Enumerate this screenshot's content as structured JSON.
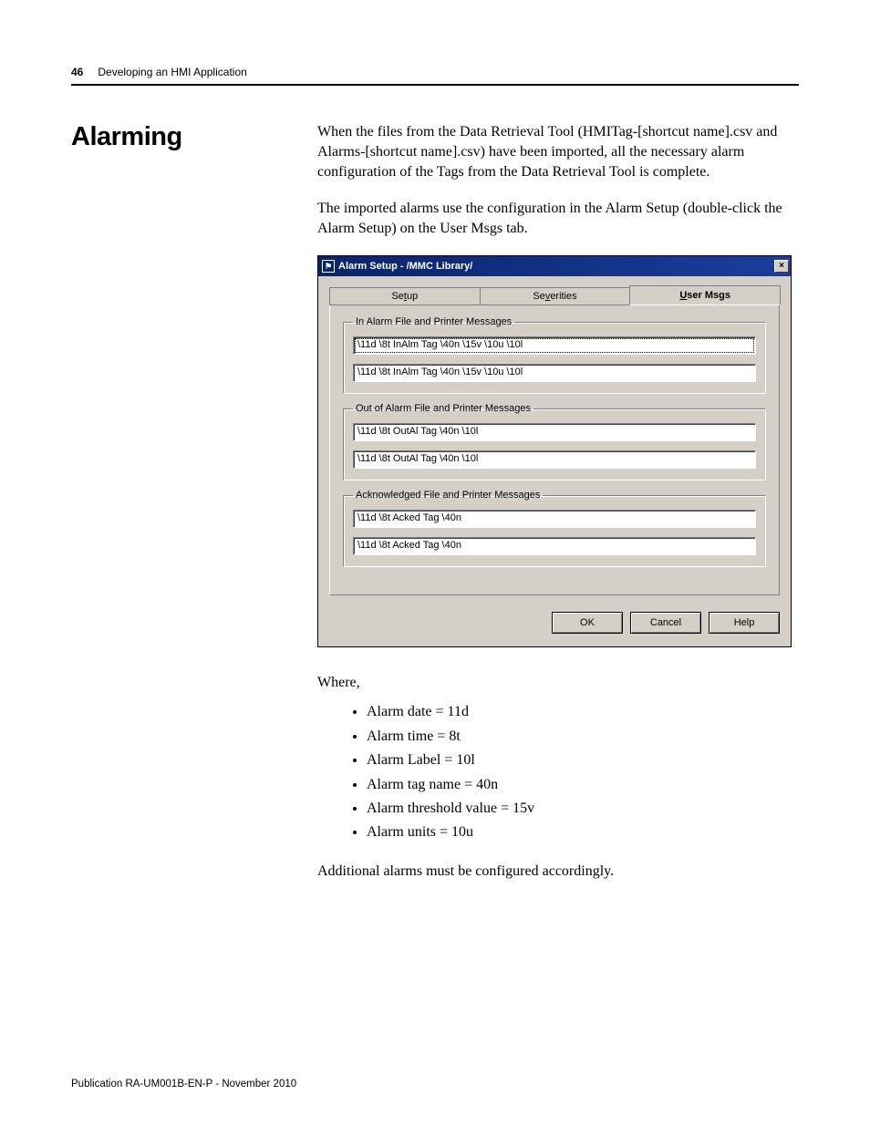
{
  "header": {
    "page_number": "46",
    "chapter": "Developing an HMI Application"
  },
  "section_heading": "Alarming",
  "paragraphs": {
    "p1": "When the files from the Data Retrieval Tool (HMITag-[shortcut name].csv and Alarms-[shortcut name].csv) have been imported, all the necessary alarm configuration of the Tags from the Data Retrieval Tool is complete.",
    "p2": "The imported alarms use the configuration in the Alarm Setup (double-click the Alarm Setup) on the User Msgs tab.",
    "where": "Where,",
    "p3": "Additional alarms must be configured accordingly."
  },
  "dialog": {
    "title": "Alarm Setup - /MMC Library/",
    "title_icon_glyph": "⚑",
    "close_glyph": "×",
    "titlebar_gradient_from": "#08246b",
    "titlebar_gradient_to": "#1b3e9c",
    "dialog_bg": "#d4d0c8",
    "tabs": [
      {
        "pre": "Se",
        "u": "t",
        "post": "up",
        "active": false
      },
      {
        "pre": "Se",
        "u": "v",
        "post": "erities",
        "active": false
      },
      {
        "pre": "",
        "u": "U",
        "post": "ser Msgs",
        "active": true
      }
    ],
    "groups": [
      {
        "legend": "In Alarm File and Printer Messages",
        "fields": [
          {
            "value": "\\11d \\8t InAlm Tag \\40n \\15v \\10u \\10l",
            "focused": true
          },
          {
            "value": "\\11d \\8t InAlm Tag \\40n \\15v \\10u \\10l",
            "focused": false
          }
        ]
      },
      {
        "legend": "Out of Alarm File and Printer Messages",
        "fields": [
          {
            "value": "\\11d \\8t OutAl Tag \\40n \\10l",
            "focused": false
          },
          {
            "value": "\\11d \\8t OutAl Tag \\40n \\10l",
            "focused": false
          }
        ]
      },
      {
        "legend": "Acknowledged File and Printer Messages",
        "fields": [
          {
            "value": "\\11d \\8t Acked Tag \\40n",
            "focused": false
          },
          {
            "value": "\\11d \\8t Acked Tag \\40n",
            "focused": false
          }
        ]
      }
    ],
    "buttons": {
      "ok": "OK",
      "cancel": "Cancel",
      "help": "Help"
    }
  },
  "definitions": [
    "Alarm date = 11d",
    "Alarm time = 8t",
    "Alarm Label = 10l",
    "Alarm tag name = 40n",
    "Alarm threshold value = 15v",
    "Alarm units = 10u"
  ],
  "footer": "Publication RA-UM001B-EN-P - November 2010"
}
